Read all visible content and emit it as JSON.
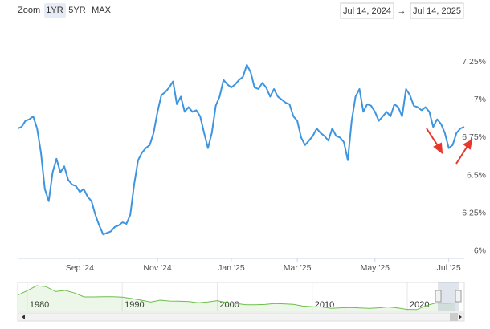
{
  "ui": {
    "zoom_label": "Zoom",
    "buttons": [
      "1YR",
      "5YR",
      "MAX"
    ],
    "range_from": "Jul 14, 2024",
    "range_arrow": "→",
    "range_to": "Jul 14, 2025"
  },
  "chart_data": [
    {
      "type": "line",
      "color": "#3d95df",
      "values": [
        6.81,
        6.82,
        6.86,
        6.87,
        6.89,
        6.81,
        6.65,
        6.41,
        6.33,
        6.52,
        6.61,
        6.52,
        6.56,
        6.47,
        6.44,
        6.43,
        6.39,
        6.41,
        6.36,
        6.33,
        6.24,
        6.17,
        6.11,
        6.12,
        6.13,
        6.16,
        6.17,
        6.19,
        6.18,
        6.24,
        6.44,
        6.6,
        6.65,
        6.68,
        6.7,
        6.78,
        6.92,
        7.03,
        7.05,
        7.08,
        7.12,
        6.97,
        7.02,
        6.92,
        6.95,
        6.92,
        6.93,
        6.89,
        6.78,
        6.68,
        6.78,
        6.96,
        7.02,
        7.13,
        7.1,
        7.08,
        7.1,
        7.13,
        7.15,
        7.23,
        7.18,
        7.08,
        7.07,
        7.11,
        7.08,
        7.02,
        7.07,
        7.02,
        7.0,
        6.98,
        6.97,
        6.89,
        6.86,
        6.75,
        6.7,
        6.73,
        6.76,
        6.81,
        6.78,
        6.76,
        6.73,
        6.81,
        6.76,
        6.75,
        6.72,
        6.6,
        6.86,
        7.02,
        7.07,
        6.92,
        6.97,
        6.96,
        6.92,
        6.86,
        6.89,
        6.92,
        6.89,
        6.97,
        6.95,
        6.89,
        7.07,
        7.03,
        6.96,
        6.95,
        6.93,
        6.95,
        6.92,
        6.82,
        6.87,
        6.84,
        6.78,
        6.68,
        6.7,
        6.78,
        6.81,
        6.82
      ],
      "xticks": [
        {
          "value": 16,
          "label": "Sep '24"
        },
        {
          "value": 36,
          "label": "Nov '24"
        },
        {
          "value": 55,
          "label": "Jan '25"
        },
        {
          "value": 72,
          "label": "Mar '25"
        },
        {
          "value": 92,
          "label": "May '25"
        },
        {
          "value": 111,
          "label": "Jul '25"
        }
      ],
      "ylim": [
        5.95,
        7.4
      ],
      "yticks": [
        {
          "value": 6,
          "label": "6%"
        },
        {
          "value": 6.25,
          "label": "6.25%"
        },
        {
          "value": 6.5,
          "label": "6.5%"
        },
        {
          "value": 6.75,
          "label": "6.75%"
        },
        {
          "value": 7,
          "label": "7%"
        },
        {
          "value": 7.25,
          "label": "7.25%"
        }
      ]
    },
    {
      "type": "area",
      "color": "#6cbf4a",
      "x": [
        1979,
        1980,
        1981,
        1982,
        1983,
        1984,
        1985,
        1986,
        1987,
        1988,
        1989,
        1990,
        1991,
        1992,
        1993,
        1994,
        1995,
        1996,
        1997,
        1998,
        1999,
        2000,
        2001,
        2002,
        2003,
        2004,
        2005,
        2006,
        2007,
        2008,
        2009,
        2010,
        2011,
        2012,
        2013,
        2014,
        2015,
        2016,
        2017,
        2018,
        2019,
        2020,
        2021,
        2022,
        2023,
        2024,
        2025
      ],
      "values": [
        11.2,
        13.7,
        16.6,
        16.0,
        13.2,
        13.9,
        12.4,
        10.2,
        10.2,
        10.3,
        10.3,
        10.1,
        9.3,
        8.4,
        7.3,
        8.4,
        7.9,
        7.8,
        7.6,
        6.9,
        7.4,
        8.1,
        7.0,
        6.5,
        5.8,
        5.8,
        5.9,
        6.4,
        6.3,
        6.0,
        5.0,
        4.7,
        4.5,
        3.7,
        4.0,
        4.2,
        3.9,
        3.7,
        4.0,
        4.5,
        3.9,
        3.1,
        3.0,
        5.3,
        6.8,
        6.7,
        6.8
      ],
      "xlim": [
        1979,
        2026
      ],
      "xticks": [
        1980,
        1990,
        2000,
        2010,
        2020
      ],
      "ylim": [
        2,
        17.5
      ]
    }
  ]
}
